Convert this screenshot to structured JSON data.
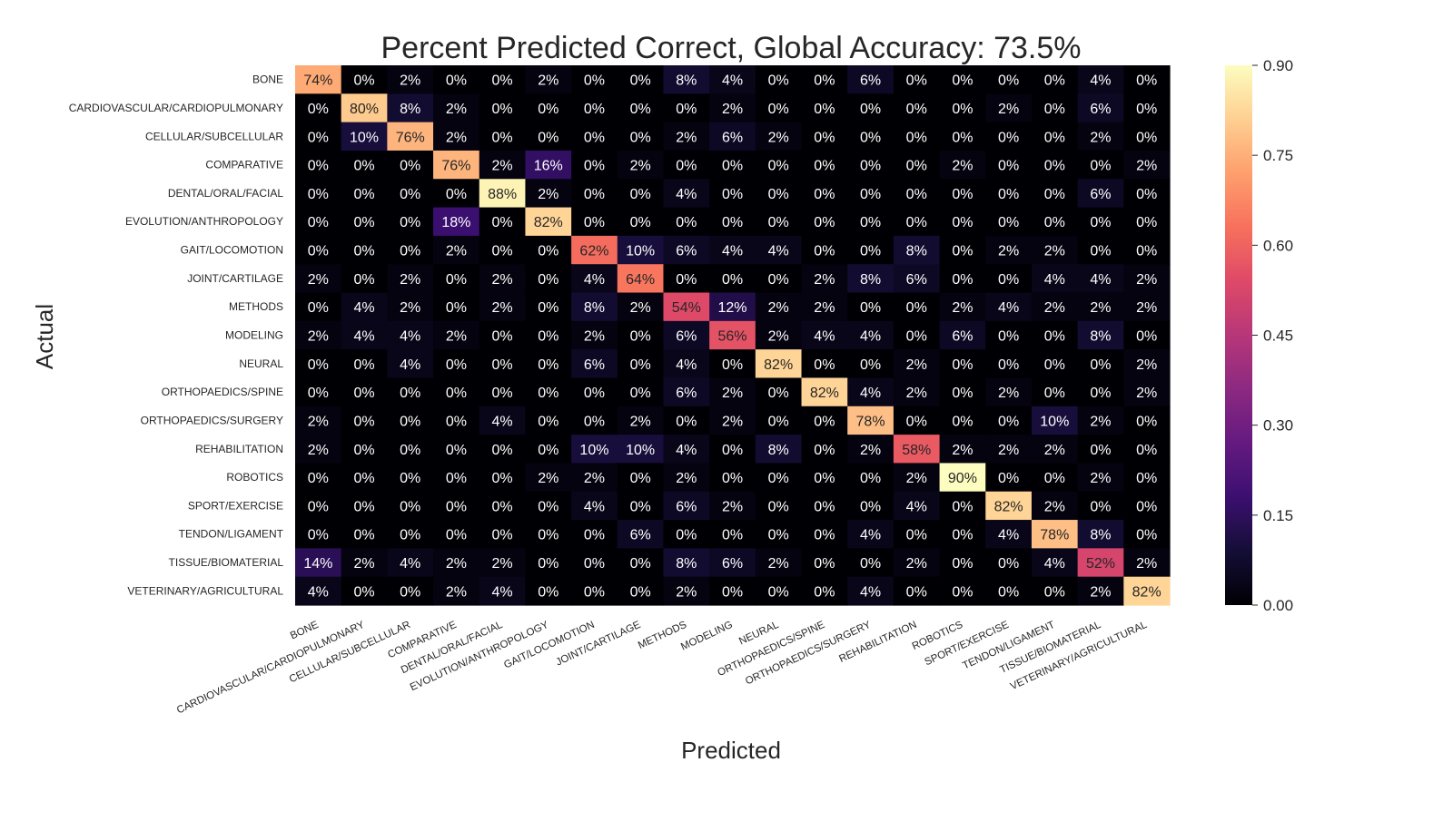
{
  "chart_data": {
    "type": "heatmap",
    "title": "Percent Predicted Correct, Global Accuracy: 73.5%",
    "xlabel": "Predicted",
    "ylabel": "Actual",
    "colormap": "magma",
    "color_range": [
      0,
      0.9
    ],
    "colorbar_ticks": [
      "0.00",
      "0.15",
      "0.30",
      "0.45",
      "0.60",
      "0.75",
      "0.90"
    ],
    "colorbar_tick_values": [
      0,
      0.15,
      0.3,
      0.45,
      0.6,
      0.75,
      0.9
    ],
    "categories": [
      "BONE",
      "CARDIOVASCULAR/CARDIOPULMONARY",
      "CELLULAR/SUBCELLULAR",
      "COMPARATIVE",
      "DENTAL/ORAL/FACIAL",
      "EVOLUTION/ANTHROPOLOGY",
      "GAIT/LOCOMOTION",
      "JOINT/CARTILAGE",
      "METHODS",
      "MODELING",
      "NEURAL",
      "ORTHOPAEDICS/SPINE",
      "ORTHOPAEDICS/SURGERY",
      "REHABILITATION",
      "ROBOTICS",
      "SPORT/EXERCISE",
      "TENDON/LIGAMENT",
      "TISSUE/BIOMATERIAL",
      "VETERINARY/AGRICULTURAL"
    ],
    "values": [
      [
        74,
        0,
        2,
        0,
        0,
        2,
        0,
        0,
        8,
        4,
        0,
        0,
        6,
        0,
        0,
        0,
        0,
        4,
        0
      ],
      [
        0,
        80,
        8,
        2,
        0,
        0,
        0,
        0,
        0,
        2,
        0,
        0,
        0,
        0,
        0,
        2,
        0,
        6,
        0
      ],
      [
        0,
        10,
        76,
        2,
        0,
        0,
        0,
        0,
        2,
        6,
        2,
        0,
        0,
        0,
        0,
        0,
        0,
        2,
        0
      ],
      [
        0,
        0,
        0,
        76,
        2,
        16,
        0,
        2,
        0,
        0,
        0,
        0,
        0,
        0,
        2,
        0,
        0,
        0,
        2
      ],
      [
        0,
        0,
        0,
        0,
        88,
        2,
        0,
        0,
        4,
        0,
        0,
        0,
        0,
        0,
        0,
        0,
        0,
        6,
        0
      ],
      [
        0,
        0,
        0,
        18,
        0,
        82,
        0,
        0,
        0,
        0,
        0,
        0,
        0,
        0,
        0,
        0,
        0,
        0,
        0
      ],
      [
        0,
        0,
        0,
        2,
        0,
        0,
        62,
        10,
        6,
        4,
        4,
        0,
        0,
        8,
        0,
        2,
        2,
        0,
        0
      ],
      [
        2,
        0,
        2,
        0,
        2,
        0,
        4,
        64,
        0,
        0,
        0,
        2,
        8,
        6,
        0,
        0,
        4,
        4,
        2
      ],
      [
        0,
        4,
        2,
        0,
        2,
        0,
        8,
        2,
        54,
        12,
        2,
        2,
        0,
        0,
        2,
        4,
        2,
        2,
        2
      ],
      [
        2,
        4,
        4,
        2,
        0,
        0,
        2,
        0,
        6,
        56,
        2,
        4,
        4,
        0,
        6,
        0,
        0,
        8,
        0
      ],
      [
        0,
        0,
        4,
        0,
        0,
        0,
        6,
        0,
        4,
        0,
        82,
        0,
        0,
        2,
        0,
        0,
        0,
        0,
        2
      ],
      [
        0,
        0,
        0,
        0,
        0,
        0,
        0,
        0,
        6,
        2,
        0,
        82,
        4,
        2,
        0,
        2,
        0,
        0,
        2
      ],
      [
        2,
        0,
        0,
        0,
        4,
        0,
        0,
        2,
        0,
        2,
        0,
        0,
        78,
        0,
        0,
        0,
        10,
        2,
        0
      ],
      [
        2,
        0,
        0,
        0,
        0,
        0,
        10,
        10,
        4,
        0,
        8,
        0,
        2,
        58,
        2,
        2,
        2,
        0,
        0
      ],
      [
        0,
        0,
        0,
        0,
        0,
        2,
        2,
        0,
        2,
        0,
        0,
        0,
        0,
        2,
        90,
        0,
        0,
        2,
        0
      ],
      [
        0,
        0,
        0,
        0,
        0,
        0,
        4,
        0,
        6,
        2,
        0,
        0,
        0,
        4,
        0,
        82,
        2,
        0,
        0
      ],
      [
        0,
        0,
        0,
        0,
        0,
        0,
        0,
        6,
        0,
        0,
        0,
        0,
        4,
        0,
        0,
        4,
        78,
        8,
        0
      ],
      [
        14,
        2,
        4,
        2,
        2,
        0,
        0,
        0,
        8,
        6,
        2,
        0,
        0,
        2,
        0,
        0,
        4,
        52,
        2
      ],
      [
        4,
        0,
        0,
        2,
        4,
        0,
        0,
        0,
        2,
        0,
        0,
        0,
        4,
        0,
        0,
        0,
        0,
        2,
        82
      ]
    ],
    "value_format": "{v}%",
    "grid": false,
    "legend": "colorbar-right"
  }
}
